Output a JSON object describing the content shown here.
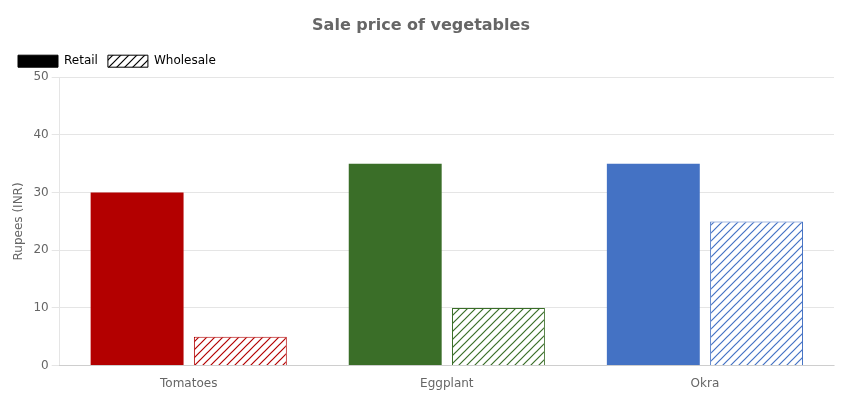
{
  "chart_data": {
    "type": "bar",
    "title": "Sale price of vegetables",
    "ylabel": "Rupees (INR)",
    "categories": [
      "Tomatoes",
      "Eggplant",
      "Okra"
    ],
    "series": [
      {
        "name": "Retail",
        "colors": [
          "#b30000",
          "#3a6e28",
          "#4472c4"
        ],
        "values": [
          30,
          35,
          35
        ]
      },
      {
        "name": "Wholesale",
        "colors": [
          "#b30000",
          "#3a6e28",
          "#4472c4"
        ],
        "values": [
          5,
          10,
          25
        ]
      }
    ],
    "ylim": [
      0,
      50
    ],
    "yticks": [
      0,
      10,
      20,
      30,
      40,
      50
    ],
    "grid": true,
    "legend": "upper left"
  }
}
